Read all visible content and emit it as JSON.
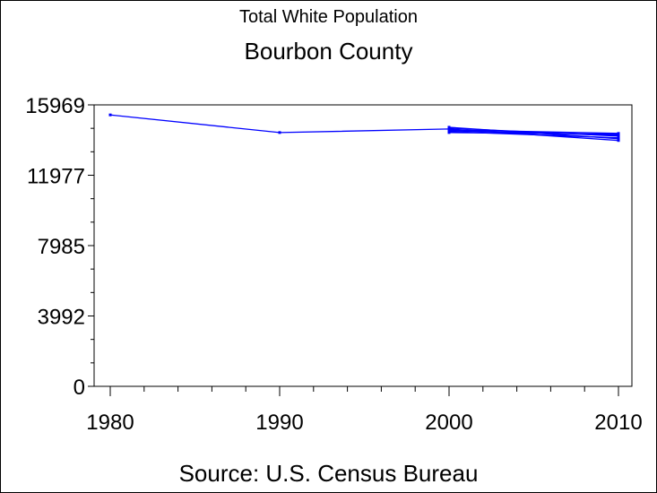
{
  "chart_data": {
    "type": "line",
    "title": "Total White Population",
    "subtitle": "Bourbon County",
    "footnote": "Source: U.S. Census Bureau",
    "xlabel": "",
    "ylabel": "",
    "x_ticks": [
      1980,
      1990,
      2000,
      2010
    ],
    "y_ticks": [
      {
        "value": 0,
        "label": "0"
      },
      {
        "value": 3992,
        "label": "3992"
      },
      {
        "value": 7985,
        "label": "7985"
      },
      {
        "value": 11977,
        "label": "11977"
      },
      {
        "value": 15969,
        "label": "15969"
      }
    ],
    "xlim": [
      1980,
      2010
    ],
    "ylim": [
      0,
      15969
    ],
    "grid": false,
    "line_color": "#0000ff",
    "series": [
      {
        "name": "",
        "x": [
          1980,
          1990,
          2000,
          2010
        ],
        "values": [
          15400,
          14400,
          14600,
          13950
        ]
      },
      {
        "name": "",
        "x": [
          2000,
          2010
        ],
        "values": [
          14500,
          14250
        ]
      },
      {
        "name": "",
        "x": [
          2000,
          2010
        ],
        "values": [
          14450,
          14100
        ]
      },
      {
        "name": "",
        "x": [
          2000,
          2010
        ],
        "values": [
          14550,
          14350
        ]
      },
      {
        "name": "",
        "x": [
          2000,
          2010
        ],
        "values": [
          14650,
          14200
        ]
      },
      {
        "name": "",
        "x": [
          2000,
          2010
        ],
        "values": [
          14400,
          14300
        ]
      },
      {
        "name": "",
        "x": [
          2000,
          2010
        ],
        "values": [
          14700,
          14050
        ]
      }
    ]
  }
}
